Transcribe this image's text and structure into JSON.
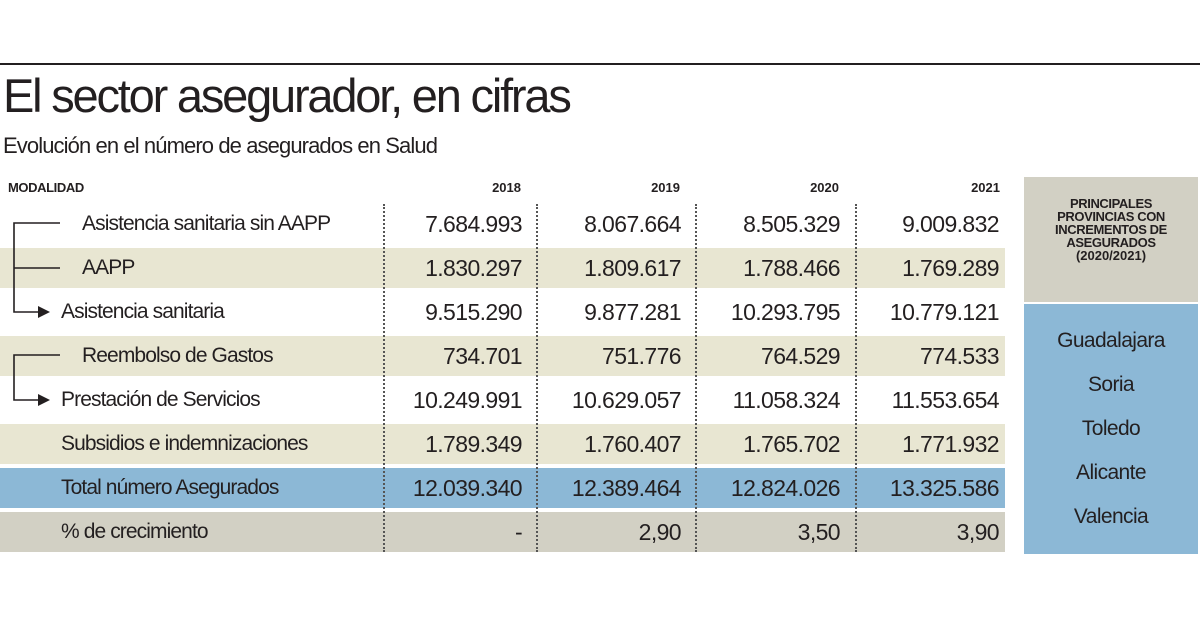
{
  "title": "El sector asegurador, en cifras",
  "subtitle": "Evolución en el número de asegurados en Salud",
  "header": {
    "modalidad": "MODALIDAD",
    "years": [
      "2018",
      "2019",
      "2020",
      "2021"
    ]
  },
  "rows": [
    {
      "label": "Asistencia sanitaria sin AAPP",
      "values": [
        "7.684.993",
        "8.067.664",
        "8.505.329",
        "9.009.832"
      ]
    },
    {
      "label": "AAPP",
      "values": [
        "1.830.297",
        "1.809.617",
        "1.788.466",
        "1.769.289"
      ]
    },
    {
      "label": "Asistencia sanitaria",
      "values": [
        "9.515.290",
        "9.877.281",
        "10.293.795",
        "10.779.121"
      ]
    },
    {
      "label": "Reembolso de Gastos",
      "values": [
        "734.701",
        "751.776",
        "764.529",
        "774.533"
      ]
    },
    {
      "label": "Prestación de Servicios",
      "values": [
        "10.249.991",
        "10.629.057",
        "11.058.324",
        "11.553.654"
      ]
    },
    {
      "label": "Subsidios e indemnizaciones",
      "values": [
        "1.789.349",
        "1.760.407",
        "1.765.702",
        "1.771.932"
      ]
    },
    {
      "label": "Total número Asegurados",
      "values": [
        "12.039.340",
        "12.389.464",
        "12.824.026",
        "13.325.586"
      ]
    },
    {
      "label": "% de crecimiento",
      "values": [
        "-",
        "2,90",
        "3,50",
        "3,90"
      ]
    }
  ],
  "sidebar": {
    "title": "Principales provincias con incrementos de asegurados",
    "period": "(2020/2021)",
    "provinces": [
      "Guadalajara",
      "Soria",
      "Toledo",
      "Alicante",
      "Valencia"
    ]
  },
  "colors": {
    "beige": "#e8e6d2",
    "blue": "#8cb8d6",
    "gray": "#d2d0c4",
    "text": "#231f20"
  }
}
